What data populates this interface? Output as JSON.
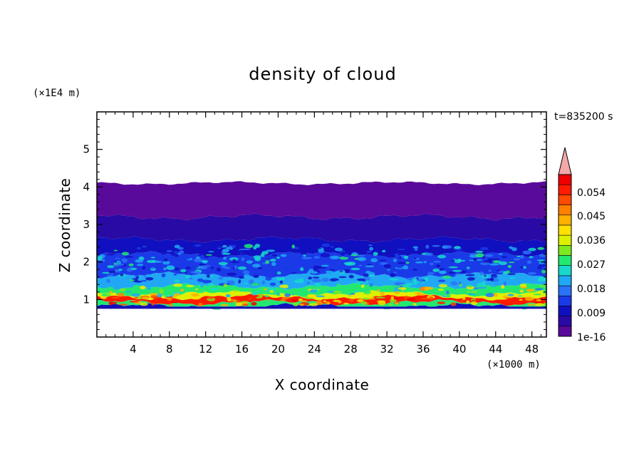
{
  "chart_data": {
    "type": "heatmap",
    "title": "density of cloud",
    "xlabel": "X coordinate",
    "ylabel": "Z coordinate",
    "x_unit": "(×1000 m)",
    "y_unit": "(×1E4 m)",
    "time_label": "t=835200 s",
    "xlim": [
      0,
      49.6
    ],
    "ylim": [
      0,
      6
    ],
    "x_ticks": [
      4,
      8,
      12,
      16,
      20,
      24,
      28,
      32,
      36,
      40,
      44,
      48
    ],
    "y_ticks": [
      1,
      2,
      3,
      4,
      5
    ],
    "grid": false,
    "layers": [
      {
        "z_bottom": 0.77,
        "z_top": 0.82,
        "level": 0.009
      },
      {
        "z_bottom": 0.82,
        "z_top": 0.92,
        "level": 0.027
      },
      {
        "z_bottom": 0.92,
        "z_top": 1.06,
        "level": 0.054
      },
      {
        "z_bottom": 1.06,
        "z_top": 1.16,
        "level": 0.036
      },
      {
        "z_bottom": 1.16,
        "z_top": 1.35,
        "level": 0.027
      },
      {
        "z_bottom": 1.35,
        "z_top": 1.65,
        "level": 0.018
      },
      {
        "z_bottom": 1.65,
        "z_top": 2.2,
        "level": 0.013
      },
      {
        "z_bottom": 2.2,
        "z_top": 2.6,
        "level": 0.009
      },
      {
        "z_bottom": 2.6,
        "z_top": 3.2,
        "level": 0.004
      },
      {
        "z_bottom": 3.2,
        "z_top": 4.1,
        "level": 1e-16
      }
    ],
    "colorbar": {
      "labels": [
        "0.054",
        "0.045",
        "0.036",
        "0.027",
        "0.018",
        "0.009",
        "1e-16"
      ],
      "colors": [
        "#5a0a9a",
        "#2a0aa4",
        "#1010c0",
        "#1a3ae8",
        "#2a72f8",
        "#20a8f4",
        "#18d8cc",
        "#22e870",
        "#7ee820",
        "#ddf000",
        "#ffe000",
        "#ffb000",
        "#ff8000",
        "#ff4a00",
        "#ff1a00",
        "#ee0000"
      ],
      "over_color": "#f4a8a8"
    }
  }
}
